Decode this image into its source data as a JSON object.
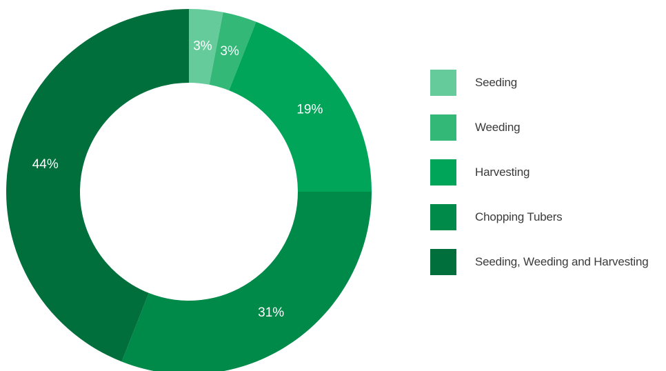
{
  "chart_data": {
    "type": "pie",
    "variant": "donut",
    "title": "",
    "categories": [
      "Seeding",
      "Weeding",
      "Harvesting",
      "Chopping Tubers",
      "Seeding, Weeding and Harvesting"
    ],
    "values": [
      3,
      3,
      19,
      31,
      44
    ],
    "value_labels": [
      "3%",
      "3%",
      "19%",
      "31%",
      "44%"
    ],
    "colors": [
      "#66cb9b",
      "#33b878",
      "#00a55a",
      "#008a4a",
      "#006f3c"
    ],
    "legend_position": "right"
  }
}
